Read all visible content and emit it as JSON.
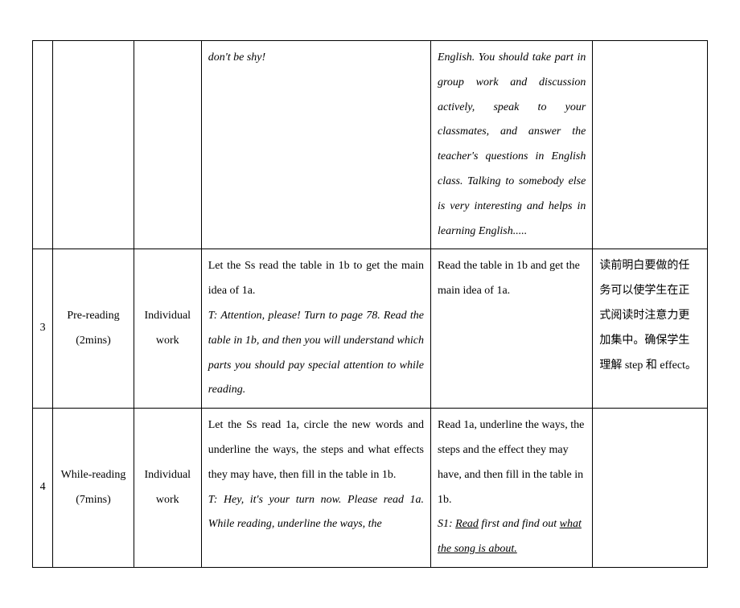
{
  "rows": [
    {
      "num": "",
      "stage": "",
      "mode": "",
      "teacher_plain": "",
      "teacher_italic": "don't be shy!",
      "student_plain": "",
      "student_italic": "English. You should take part in group work and discussion actively, speak to your classmates, and answer the teacher's questions in English class. Talking to somebody else is very interesting and helps in learning English.....",
      "note": ""
    },
    {
      "num": "3",
      "stage": "Pre-reading (2mins)",
      "mode": "Individual work",
      "teacher_plain": "Let the Ss read the table in 1b to get the main idea of 1a.",
      "teacher_italic": "T: Attention, please! Turn to page 78. Read the table in 1b, and then you will understand which parts you should pay special attention to while reading.",
      "student_plain": "Read the table in 1b and get the main idea of 1a.",
      "student_italic": "",
      "note": "读前明白要做的任务可以使学生在正式阅读时注意力更加集中。确保学生理解 step 和 effect。"
    },
    {
      "num": "4",
      "stage": "While-reading (7mins)",
      "mode": "Individual work",
      "teacher_plain": "Let the Ss read 1a, circle the new words and underline the ways, the steps and what effects they may have, then fill in the table in 1b.",
      "teacher_italic": "T: Hey, it's your turn now. Please read 1a. While reading, underline the ways, the",
      "student_plain": "Read 1a, underline the ways, the steps and the effect they may have, and then fill in the table in 1b.",
      "student_italic_prefix": "S1: ",
      "student_italic_u1": "Read",
      "student_italic_mid": " first and find out ",
      "student_italic_u2": "what the song is about.",
      "note": ""
    }
  ]
}
